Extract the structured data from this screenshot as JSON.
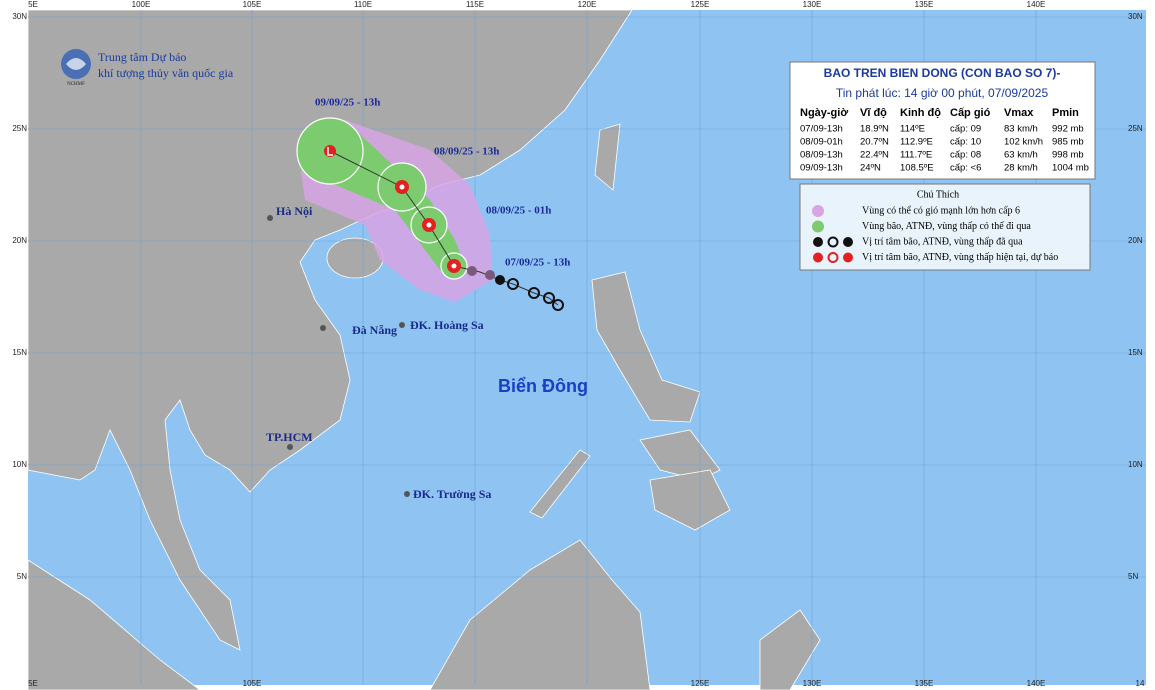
{
  "header": {
    "org_line1": "Trung tâm Dự báo",
    "org_line2": "khí tượng thủy văn quốc gia",
    "logo_text": "NCHMF"
  },
  "grid": {
    "top_labels": [
      "5E",
      "100E",
      "105E",
      "110E",
      "115E",
      "120E",
      "125E",
      "130E",
      "135E",
      "140E"
    ],
    "bottom_labels": [
      "5E",
      "105E",
      "125E",
      "130E",
      "135E",
      "140E",
      "14"
    ],
    "left_labels": [
      "30N",
      "25N",
      "20N",
      "15N",
      "10N",
      "5N"
    ],
    "right_labels": [
      "30N",
      "25N",
      "20N",
      "15N",
      "10N",
      "5N"
    ]
  },
  "places": [
    {
      "label": "Hà Nội"
    },
    {
      "label": "Đà Nẵng"
    },
    {
      "label": "ĐK. Hoàng Sa"
    },
    {
      "label": "Biển Đông"
    },
    {
      "label": "TP.HCM"
    },
    {
      "label": "ĐK. Trường Sa"
    }
  ],
  "track_labels": [
    "09/09/25 - 13h",
    "08/09/25 - 13h",
    "08/09/25 - 01h",
    "07/09/25 - 13h"
  ],
  "info": {
    "title": "BAO TREN BIEN DONG (CON BAO SO 7)-",
    "issued": "Tin phát lúc: 14 giờ 00 phút, 07/09/2025",
    "columns": [
      "Ngày-giờ",
      "Vĩ độ",
      "Kinh độ",
      "Cấp gió",
      "Vmax",
      "Pmin"
    ],
    "rows": [
      [
        "07/09-13h",
        "18.9ºN",
        "114ºE",
        "cấp: 09",
        "83 km/h",
        "992 mb"
      ],
      [
        "08/09-01h",
        "20.7ºN",
        "112.9ºE",
        "cấp: 10",
        "102 km/h",
        "985 mb"
      ],
      [
        "08/09-13h",
        "22.4ºN",
        "111.7ºE",
        "cấp: 08",
        "63 km/h",
        "998 mb"
      ],
      [
        "09/09-13h",
        "24ºN",
        "108.5ºE",
        "cấp: <6",
        "28 km/h",
        "1004 mb"
      ]
    ]
  },
  "legend": {
    "title": "Chú Thích",
    "items": [
      "Vùng có thể có gió mạnh lớn hơn cấp 6",
      "Vùng bão, ATNĐ, vùng thấp có thể đi qua",
      "Vị trí tâm bão, ATNĐ, vùng thấp đã qua",
      "Vị trí tâm bão, ATNĐ, vùng thấp hiện tại, dự báo"
    ]
  }
}
